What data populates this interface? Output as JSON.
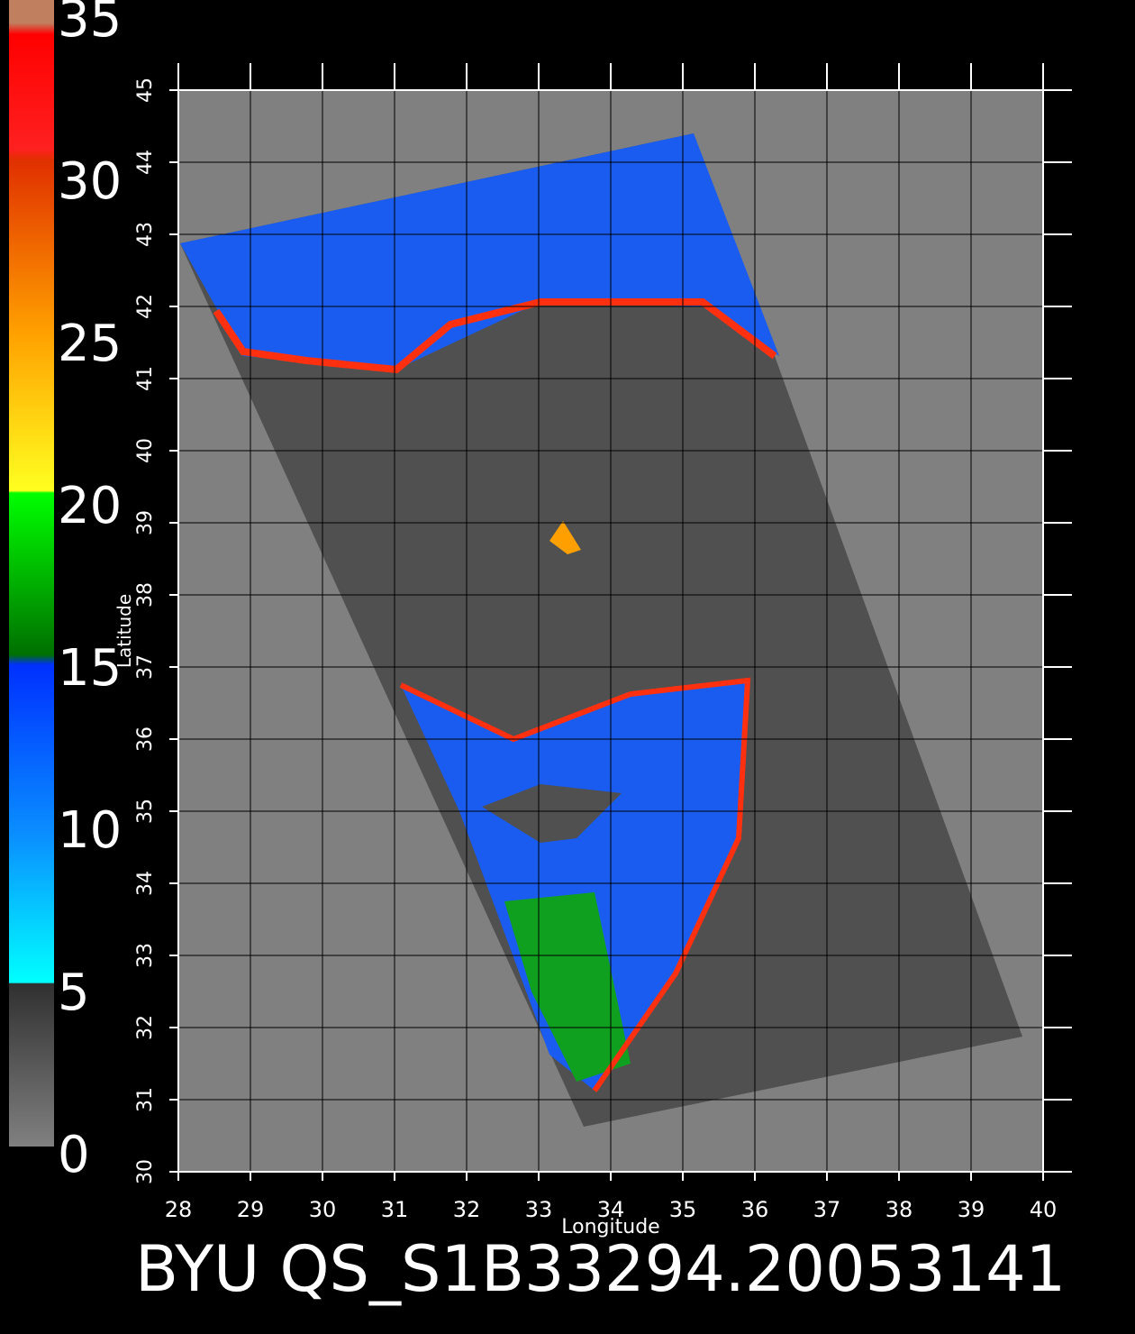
{
  "title": "BYU QS_S1B33294.20053141",
  "colorbar": {
    "ticks": [
      0,
      5,
      10,
      15,
      20,
      25,
      30,
      35
    ]
  },
  "map": {
    "xlabel": "Longitude",
    "ylabel": "Latitude",
    "xticks": [
      28,
      29,
      30,
      31,
      32,
      33,
      34,
      35,
      36,
      37,
      38,
      39,
      40
    ],
    "yticks": [
      30,
      31,
      32,
      33,
      34,
      35,
      36,
      37,
      38,
      39,
      40,
      41,
      42,
      43,
      44,
      45
    ]
  }
}
